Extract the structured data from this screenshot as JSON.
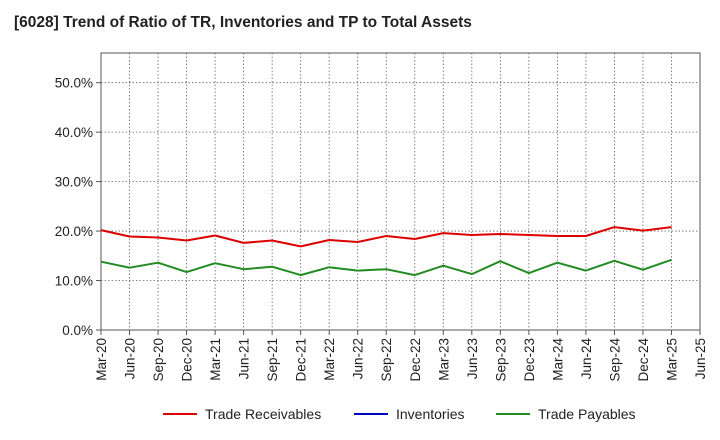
{
  "chart_data": {
    "type": "line",
    "title": "[6028]  Trend of Ratio of TR, Inventories and TP to Total Assets",
    "xlabel": "",
    "ylabel": "",
    "ylim": [
      0,
      0.56
    ],
    "yticks": [
      0,
      0.1,
      0.2,
      0.3,
      0.4,
      0.5
    ],
    "ytick_labels": [
      "0.0%",
      "10.0%",
      "20.0%",
      "30.0%",
      "40.0%",
      "50.0%"
    ],
    "x": [
      "Mar-20",
      "Jun-20",
      "Sep-20",
      "Dec-20",
      "Mar-21",
      "Jun-21",
      "Sep-21",
      "Dec-21",
      "Mar-22",
      "Jun-22",
      "Sep-22",
      "Dec-22",
      "Mar-23",
      "Jun-23",
      "Sep-23",
      "Dec-23",
      "Mar-24",
      "Jun-24",
      "Sep-24",
      "Dec-24",
      "Mar-25",
      "Jun-25"
    ],
    "grid": true,
    "legend_position": "bottom",
    "series": [
      {
        "name": "Trade Receivables",
        "color": "#dd0000",
        "values": [
          0.202,
          0.189,
          0.187,
          0.181,
          0.191,
          0.176,
          0.181,
          0.169,
          0.182,
          0.178,
          0.19,
          0.184,
          0.196,
          0.192,
          0.194,
          0.192,
          0.19,
          0.19,
          0.208,
          0.201,
          0.208,
          null
        ]
      },
      {
        "name": "Inventories",
        "color": "#0000cc",
        "values": [
          null,
          null,
          null,
          null,
          null,
          null,
          null,
          null,
          null,
          null,
          null,
          null,
          null,
          null,
          null,
          null,
          null,
          null,
          null,
          null,
          null,
          null
        ]
      },
      {
        "name": "Trade Payables",
        "color": "#228b22",
        "values": [
          0.138,
          0.126,
          0.136,
          0.117,
          0.135,
          0.123,
          0.128,
          0.111,
          0.127,
          0.12,
          0.123,
          0.111,
          0.13,
          0.113,
          0.139,
          0.115,
          0.136,
          0.12,
          0.14,
          0.122,
          0.142,
          null
        ]
      }
    ]
  }
}
